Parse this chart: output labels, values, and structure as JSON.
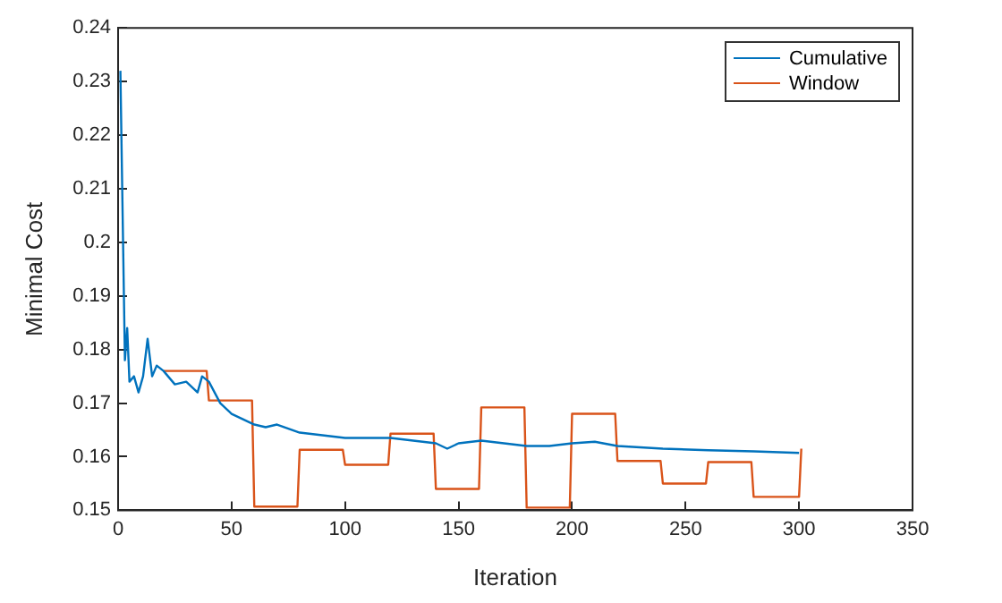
{
  "chart_data": {
    "type": "line",
    "xlabel": "Iteration",
    "ylabel": "Minimal Cost",
    "xlim": [
      0,
      350
    ],
    "xticks": [
      0,
      50,
      100,
      150,
      200,
      250,
      300,
      350
    ],
    "ylim": [
      0.15,
      0.24
    ],
    "yticks": [
      0.15,
      0.16,
      0.17,
      0.18,
      0.19,
      0.2,
      0.21,
      0.22,
      0.23,
      0.24
    ],
    "grid": false,
    "legend": "top right",
    "marker": "none",
    "line_style": "solid",
    "series": [
      {
        "name": "Cumulative",
        "color": "#0072bd",
        "x": [
          1,
          2,
          3,
          4,
          5,
          7,
          9,
          11,
          13,
          15,
          17,
          20,
          25,
          30,
          35,
          37,
          40,
          45,
          50,
          55,
          60,
          65,
          70,
          80,
          90,
          100,
          110,
          120,
          130,
          140,
          145,
          150,
          160,
          170,
          180,
          190,
          200,
          210,
          220,
          240,
          260,
          280,
          300
        ],
        "values": [
          0.232,
          0.205,
          0.178,
          0.184,
          0.174,
          0.175,
          0.172,
          0.175,
          0.182,
          0.175,
          0.177,
          0.176,
          0.1735,
          0.174,
          0.172,
          0.175,
          0.174,
          0.17,
          0.168,
          0.167,
          0.166,
          0.1655,
          0.166,
          0.1645,
          0.164,
          0.1635,
          0.1635,
          0.1635,
          0.163,
          0.1625,
          0.1615,
          0.1625,
          0.163,
          0.1625,
          0.162,
          0.162,
          0.1625,
          0.1628,
          0.162,
          0.1615,
          0.1612,
          0.161,
          0.1607
        ]
      },
      {
        "name": "Window",
        "color": "#d95319",
        "x": [
          20,
          39,
          40,
          59,
          60,
          79,
          80,
          99,
          100,
          119,
          120,
          139,
          140,
          159,
          160,
          179,
          180,
          199,
          200,
          219,
          220,
          239,
          240,
          259,
          260,
          279,
          280,
          300,
          301
        ],
        "values": [
          0.176,
          0.176,
          0.1705,
          0.1705,
          0.1507,
          0.1507,
          0.1613,
          0.1613,
          0.1585,
          0.1585,
          0.1643,
          0.1643,
          0.154,
          0.154,
          0.1692,
          0.1692,
          0.1505,
          0.1505,
          0.168,
          0.168,
          0.1592,
          0.1592,
          0.155,
          0.155,
          0.159,
          0.159,
          0.1525,
          0.1525,
          0.1615
        ]
      }
    ]
  }
}
